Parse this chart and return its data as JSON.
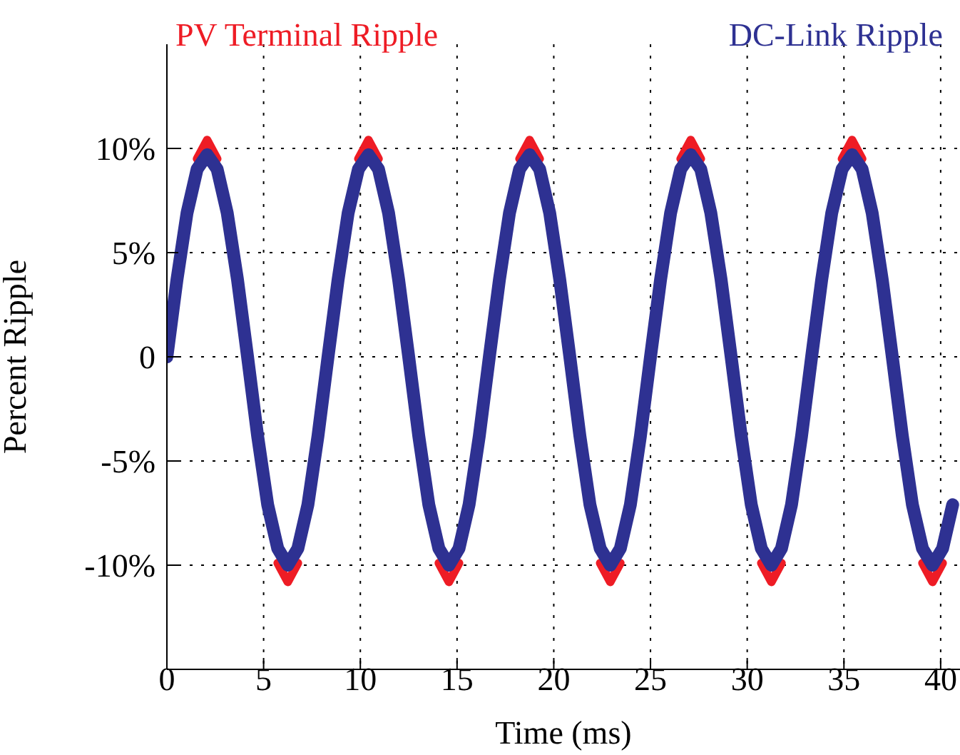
{
  "chart_data": {
    "type": "line",
    "xlabel": "Time (ms)",
    "ylabel": "Percent Ripple",
    "xlim": [
      0,
      41
    ],
    "xticks": [
      0,
      5,
      10,
      15,
      20,
      25,
      30,
      35,
      40
    ],
    "ylim": [
      -15,
      15
    ],
    "yticks": [
      {
        "value": -10,
        "label": "-10%"
      },
      {
        "value": -5,
        "label": "-5%"
      },
      {
        "value": 0,
        "label": "0"
      },
      {
        "value": 5,
        "label": "5%"
      },
      {
        "value": 10,
        "label": "10%"
      }
    ],
    "grid": true,
    "legend": "top",
    "line_style": "solid",
    "marker": "none",
    "x": [
      0,
      0.52,
      1.04,
      1.56,
      2.08,
      2.6,
      3.12,
      3.65,
      4.17,
      4.69,
      5.21,
      5.73,
      6.25,
      6.77,
      7.29,
      7.81,
      8.33,
      8.85,
      9.37,
      9.9,
      10.42,
      10.94,
      11.46,
      11.98,
      12.5,
      13.02,
      13.54,
      14.06,
      14.58,
      15.1,
      15.62,
      16.15,
      16.67,
      17.19,
      17.71,
      18.23,
      18.75,
      19.27,
      19.79,
      20.31,
      20.83,
      21.35,
      21.87,
      22.4,
      22.92,
      23.44,
      23.96,
      24.48,
      25.0,
      25.52,
      26.04,
      26.56,
      27.08,
      27.6,
      28.12,
      28.65,
      29.17,
      29.69,
      30.21,
      30.73,
      31.25,
      31.77,
      32.29,
      32.81,
      33.33,
      33.85,
      34.37,
      34.9,
      35.42,
      35.94,
      36.46,
      36.98,
      37.5,
      38.02,
      38.54,
      39.06,
      39.58,
      40.1,
      40.62
    ],
    "series": [
      {
        "name": "PV Terminal Ripple",
        "color": "#ee1c25",
        "values": [
          null,
          null,
          null,
          9.5,
          10.4,
          9.5,
          null,
          null,
          null,
          null,
          null,
          -9.9,
          -10.8,
          -9.9,
          null,
          null,
          null,
          null,
          null,
          9.5,
          10.4,
          9.5,
          null,
          null,
          null,
          null,
          null,
          -9.9,
          -10.8,
          -9.9,
          null,
          null,
          null,
          null,
          null,
          9.5,
          10.4,
          9.5,
          null,
          null,
          null,
          null,
          null,
          -9.9,
          -10.8,
          -9.9,
          null,
          null,
          null,
          null,
          null,
          9.5,
          10.4,
          9.5,
          null,
          null,
          null,
          null,
          null,
          -9.9,
          -10.8,
          -9.9,
          null,
          null,
          null,
          null,
          null,
          9.5,
          10.4,
          9.5,
          null,
          null,
          null,
          null,
          null,
          -9.9,
          -10.8,
          -9.9,
          null
        ]
      },
      {
        "name": "DC-Link Ripple",
        "color": "#2e3192",
        "values": [
          0,
          3.7,
          6.9,
          9.0,
          9.7,
          9.0,
          6.9,
          3.7,
          0,
          -3.8,
          -7.1,
          -9.2,
          -10.0,
          -9.2,
          -7.1,
          -3.8,
          0,
          3.7,
          6.9,
          9.0,
          9.7,
          9.0,
          6.9,
          3.7,
          0,
          -3.8,
          -7.1,
          -9.2,
          -10.0,
          -9.2,
          -7.1,
          -3.8,
          0,
          3.7,
          6.9,
          9.0,
          9.7,
          9.0,
          6.9,
          3.7,
          0,
          -3.8,
          -7.1,
          -9.2,
          -10.0,
          -9.2,
          -7.1,
          -3.8,
          0,
          3.7,
          6.9,
          9.0,
          9.7,
          9.0,
          6.9,
          3.7,
          0,
          -3.8,
          -7.1,
          -9.2,
          -10.0,
          -9.2,
          -7.1,
          -3.8,
          0,
          3.7,
          6.9,
          9.0,
          9.7,
          9.0,
          6.9,
          3.7,
          0,
          -3.8,
          -7.1,
          -9.2,
          -10.0,
          -9.2,
          -7.1
        ]
      }
    ]
  }
}
